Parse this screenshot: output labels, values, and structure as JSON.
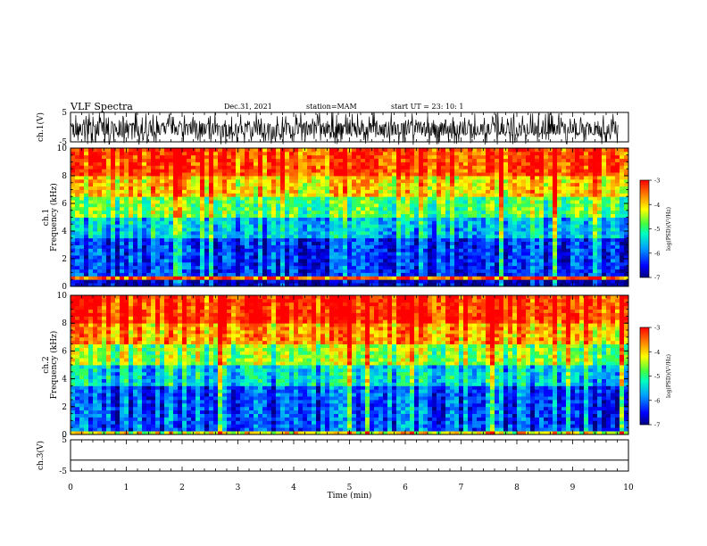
{
  "header": {
    "title": "VLF Spectra",
    "date": "Dec.31, 2021",
    "station": "station=MAM",
    "start": "start  UT =   23: 10: 1"
  },
  "chart_data": [
    {
      "type": "line",
      "panel": "ch1-waveform",
      "ylabel": "ch.1(V)",
      "ylim": [
        -5,
        5
      ],
      "yticks": [
        "5",
        "-5"
      ],
      "note_shape": "dense spiky waveform filling -5..5 range"
    },
    {
      "type": "heatmap",
      "panel": "ch1-spectrogram",
      "ylabel": "ch.1\nFrequency  (kHz)",
      "ylabel_lines": [
        "ch.1",
        "Frequency  (kHz)"
      ],
      "ylim": [
        0,
        10
      ],
      "yticks": [
        "0",
        "2",
        "4",
        "6",
        "8",
        "10"
      ],
      "xlim": [
        0,
        10
      ],
      "colorbar": {
        "label": "log(PSD)(V²/Hz)",
        "range": [
          -7,
          -3
        ],
        "ticks": [
          "-3",
          "-4",
          "-5",
          "-6",
          "-7"
        ]
      },
      "bands": [
        {
          "from_khz": 0,
          "to_khz": 0.5,
          "level": -6.8
        },
        {
          "from_khz": 0.5,
          "to_khz": 0.7,
          "level": -3.5
        },
        {
          "from_khz": 0.7,
          "to_khz": 3.5,
          "level": -6.3
        },
        {
          "from_khz": 3.5,
          "to_khz": 5,
          "level": -5.6
        },
        {
          "from_khz": 5,
          "to_khz": 6.5,
          "level": -4.8
        },
        {
          "from_khz": 6.5,
          "to_khz": 8,
          "level": -4.0
        },
        {
          "from_khz": 8,
          "to_khz": 10,
          "level": -3.3
        }
      ]
    },
    {
      "type": "heatmap",
      "panel": "ch2-spectrogram",
      "ylabel": "ch.2\nFrequency  (kHz)",
      "ylabel_lines": [
        "ch.2",
        "Frequency  (kHz)"
      ],
      "ylim": [
        0,
        10
      ],
      "yticks": [
        "0",
        "2",
        "4",
        "6",
        "8",
        "10"
      ],
      "xlim": [
        0,
        10
      ],
      "colorbar": {
        "label": "log(PSD)(V²/Hz)",
        "range": [
          -7,
          -3
        ],
        "ticks": [
          "-3",
          "-4",
          "-5",
          "-6",
          "-7"
        ]
      },
      "bands": [
        {
          "from_khz": 0,
          "to_khz": 0.3,
          "level": -4.2
        },
        {
          "from_khz": 0.3,
          "to_khz": 3.5,
          "level": -6.2
        },
        {
          "from_khz": 3.5,
          "to_khz": 5,
          "level": -5.5
        },
        {
          "from_khz": 5,
          "to_khz": 6.5,
          "level": -4.6
        },
        {
          "from_khz": 6.5,
          "to_khz": 8,
          "level": -3.8
        },
        {
          "from_khz": 8,
          "to_khz": 10,
          "level": -3.2
        }
      ]
    },
    {
      "type": "line",
      "panel": "ch3-waveform",
      "ylabel": "ch.3(V)",
      "ylim": [
        -5,
        5
      ],
      "yticks": [
        "5",
        "-5"
      ],
      "x": [
        0,
        10
      ],
      "y": [
        -1.5,
        -1.5
      ]
    }
  ],
  "xaxis": {
    "label": "Time  (min)",
    "range": [
      0,
      10
    ],
    "ticks": [
      "0",
      "1",
      "2",
      "3",
      "4",
      "5",
      "6",
      "7",
      "8",
      "9",
      "10"
    ]
  }
}
